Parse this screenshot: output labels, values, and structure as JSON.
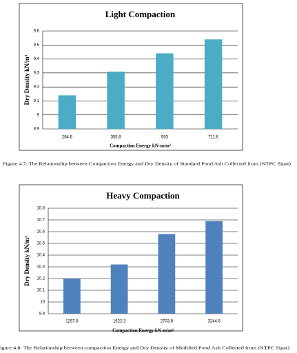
{
  "chart_data": [
    {
      "type": "bar",
      "title": "Light Compaction",
      "x_label": "Compaction Energy kN-m/m²",
      "y_label": "Dry Density kN/m³",
      "categories": [
        "284.6",
        "355.8",
        "593",
        "711.6"
      ],
      "values": [
        9.14,
        9.31,
        9.44,
        9.54
      ],
      "color": "#4bacc6",
      "ylim": [
        8.9,
        9.6
      ],
      "yticks": [
        8.9,
        9,
        9.1,
        9.2,
        9.3,
        9.4,
        9.5,
        9.6
      ],
      "grid": true,
      "caption": "Figure 4.7: The Relationship between Compaction Energy and Dry Density of Standard Pond Ash Collected from (NTPC Sipat)"
    },
    {
      "type": "bar",
      "title": "Heavy Compaction",
      "x_label": "Compaction Energy kN-m/m²",
      "y_label": "Dry Density kN/m³",
      "categories": [
        "1297.8",
        "1622.3",
        "2703.8",
        "3244.6"
      ],
      "values": [
        10.2,
        10.32,
        10.58,
        10.69
      ],
      "color": "#4f81bd",
      "ylim": [
        9.9,
        10.8
      ],
      "yticks": [
        9.9,
        10,
        10.1,
        10.2,
        10.3,
        10.4,
        10.5,
        10.6,
        10.7,
        10.8
      ],
      "grid": true,
      "caption": "igure 4.8: The Relationship between compaction Energy and Dry Density of Modified Pond Ash Collected from (NTPC Sipat)"
    }
  ]
}
